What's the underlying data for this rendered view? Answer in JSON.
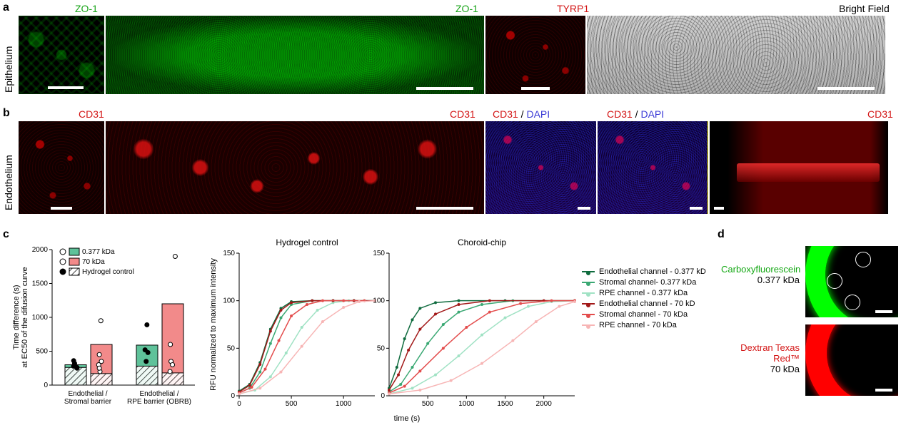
{
  "panels": {
    "a": "a",
    "b": "b",
    "c": "c",
    "d": "d"
  },
  "sideLabels": {
    "epithelium": "Epithelium",
    "endothelium": "Endothelium"
  },
  "markers": {
    "zo1": "ZO-1",
    "tyrp1": "TYRP1",
    "brightfield": "Bright Field",
    "cd31": "CD31",
    "dapi": "DAPI",
    "sep": " / "
  },
  "colors": {
    "green_marker": "#1aa51a",
    "red_marker": "#d31515",
    "blue_marker": "#3a3ad6",
    "black": "#000000",
    "bar_green_fill": "#5fc29a",
    "bar_red_fill": "#f28a8a",
    "dark_green": "#0f6b3e",
    "mid_green": "#3aa873",
    "light_green": "#a0e2c4",
    "dark_red": "#a21818",
    "mid_red": "#e34c4c",
    "light_red": "#f7b5b5"
  },
  "barChart": {
    "ylabel": "Time difference (s)\nat EC50 of the difusion curve",
    "ymax": 2000,
    "ytick": 500,
    "legend": {
      "kda_small": "0.377 kDa",
      "kda_large": "70 kDa",
      "hydrogel": "Hydrogel control"
    },
    "groups": [
      {
        "label": "Endothelial /\nStromal barrier",
        "bars": [
          {
            "key": "0.377",
            "value": 300,
            "control": 260
          },
          {
            "key": "70",
            "value": 600,
            "control": 170
          }
        ],
        "points_small": [
          250,
          280,
          320,
          260,
          360
        ],
        "points_large": [
          200,
          300,
          450,
          950,
          250,
          350
        ]
      },
      {
        "label": "Endothelial /\nRPE barrier (OBRB)",
        "bars": [
          {
            "key": "0.377",
            "value": 590,
            "control": 280
          },
          {
            "key": "70",
            "value": 1200,
            "control": 180
          }
        ],
        "points_small": [
          350,
          480,
          890,
          520
        ],
        "points_large": [
          200,
          350,
          600,
          1900,
          300
        ]
      }
    ]
  },
  "lineCharts": {
    "ylabel": "RFU normalized to maximum intensity",
    "xlabel": "time (s)",
    "ymax": 150,
    "ytick": 50,
    "panels": [
      {
        "title": "Hydrogel control",
        "xmax": 1300,
        "xtick": 500,
        "series": [
          {
            "color": "dark_green",
            "pts": [
              [
                0,
                5
              ],
              [
                100,
                12
              ],
              [
                200,
                35
              ],
              [
                300,
                70
              ],
              [
                400,
                92
              ],
              [
                500,
                99
              ],
              [
                700,
                100
              ],
              [
                900,
                100
              ],
              [
                1100,
                100
              ],
              [
                1300,
                100
              ]
            ]
          },
          {
            "color": "mid_green",
            "pts": [
              [
                0,
                3
              ],
              [
                100,
                8
              ],
              [
                200,
                25
              ],
              [
                300,
                55
              ],
              [
                400,
                82
              ],
              [
                500,
                96
              ],
              [
                700,
                100
              ],
              [
                900,
                100
              ],
              [
                1100,
                100
              ],
              [
                1300,
                100
              ]
            ]
          },
          {
            "color": "light_green",
            "pts": [
              [
                0,
                2
              ],
              [
                150,
                6
              ],
              [
                300,
                20
              ],
              [
                450,
                45
              ],
              [
                600,
                72
              ],
              [
                750,
                90
              ],
              [
                900,
                98
              ],
              [
                1050,
                100
              ],
              [
                1200,
                100
              ]
            ]
          },
          {
            "color": "dark_red",
            "pts": [
              [
                0,
                4
              ],
              [
                100,
                11
              ],
              [
                200,
                33
              ],
              [
                300,
                68
              ],
              [
                400,
                90
              ],
              [
                500,
                98
              ],
              [
                700,
                100
              ],
              [
                900,
                100
              ],
              [
                1100,
                100
              ],
              [
                1300,
                100
              ]
            ]
          },
          {
            "color": "mid_red",
            "pts": [
              [
                0,
                3
              ],
              [
                120,
                9
              ],
              [
                250,
                28
              ],
              [
                380,
                58
              ],
              [
                500,
                84
              ],
              [
                650,
                96
              ],
              [
                800,
                100
              ],
              [
                1000,
                100
              ],
              [
                1200,
                100
              ]
            ]
          },
          {
            "color": "light_red",
            "pts": [
              [
                0,
                2
              ],
              [
                200,
                8
              ],
              [
                400,
                25
              ],
              [
                600,
                52
              ],
              [
                800,
                78
              ],
              [
                1000,
                93
              ],
              [
                1150,
                99
              ],
              [
                1300,
                100
              ]
            ]
          }
        ]
      },
      {
        "title": "Choroid-chip",
        "xmax": 2400,
        "xtick": 500,
        "series": [
          {
            "color": "dark_green",
            "pts": [
              [
                0,
                8
              ],
              [
                100,
                30
              ],
              [
                200,
                60
              ],
              [
                300,
                80
              ],
              [
                400,
                92
              ],
              [
                600,
                98
              ],
              [
                900,
                100
              ],
              [
                1500,
                100
              ],
              [
                2400,
                100
              ]
            ]
          },
          {
            "color": "mid_green",
            "pts": [
              [
                0,
                4
              ],
              [
                150,
                12
              ],
              [
                300,
                30
              ],
              [
                500,
                55
              ],
              [
                700,
                75
              ],
              [
                900,
                88
              ],
              [
                1200,
                96
              ],
              [
                1600,
                100
              ],
              [
                2400,
                100
              ]
            ]
          },
          {
            "color": "light_green",
            "pts": [
              [
                0,
                2
              ],
              [
                300,
                8
              ],
              [
                600,
                22
              ],
              [
                900,
                42
              ],
              [
                1200,
                64
              ],
              [
                1500,
                82
              ],
              [
                1800,
                94
              ],
              [
                2100,
                99
              ],
              [
                2400,
                100
              ]
            ]
          },
          {
            "color": "dark_red",
            "pts": [
              [
                0,
                6
              ],
              [
                120,
                22
              ],
              [
                250,
                48
              ],
              [
                400,
                70
              ],
              [
                600,
                86
              ],
              [
                900,
                96
              ],
              [
                1300,
                100
              ],
              [
                2000,
                100
              ],
              [
                2400,
                100
              ]
            ]
          },
          {
            "color": "mid_red",
            "pts": [
              [
                0,
                3
              ],
              [
                200,
                10
              ],
              [
                400,
                26
              ],
              [
                700,
                50
              ],
              [
                1000,
                72
              ],
              [
                1300,
                88
              ],
              [
                1700,
                97
              ],
              [
                2100,
                100
              ],
              [
                2400,
                100
              ]
            ]
          },
          {
            "color": "light_red",
            "pts": [
              [
                0,
                2
              ],
              [
                400,
                6
              ],
              [
                800,
                16
              ],
              [
                1200,
                34
              ],
              [
                1600,
                58
              ],
              [
                1900,
                78
              ],
              [
                2200,
                94
              ],
              [
                2400,
                99
              ]
            ]
          }
        ]
      }
    ],
    "legend": [
      {
        "color": "dark_green",
        "text": "Endothelial channel - 0.377 kD"
      },
      {
        "color": "mid_green",
        "text": "Stromal channel- 0.377 kDa"
      },
      {
        "color": "light_green",
        "text": "RPE channel - 0.377 kDa"
      },
      {
        "color": "dark_red",
        "text": "Endothelial channel - 70 kD"
      },
      {
        "color": "mid_red",
        "text": "Stromal channel - 70 kDa"
      },
      {
        "color": "light_red",
        "text": "RPE channel - 70 kDa"
      }
    ]
  },
  "panelD": {
    "carboxy": {
      "name": "Carboxyfluorescein",
      "mass": "0.377 kDa",
      "color": "#15a815"
    },
    "dextran": {
      "name": "Dextran Texas Red™",
      "mass": "70 kDa",
      "color": "#d31515"
    }
  }
}
